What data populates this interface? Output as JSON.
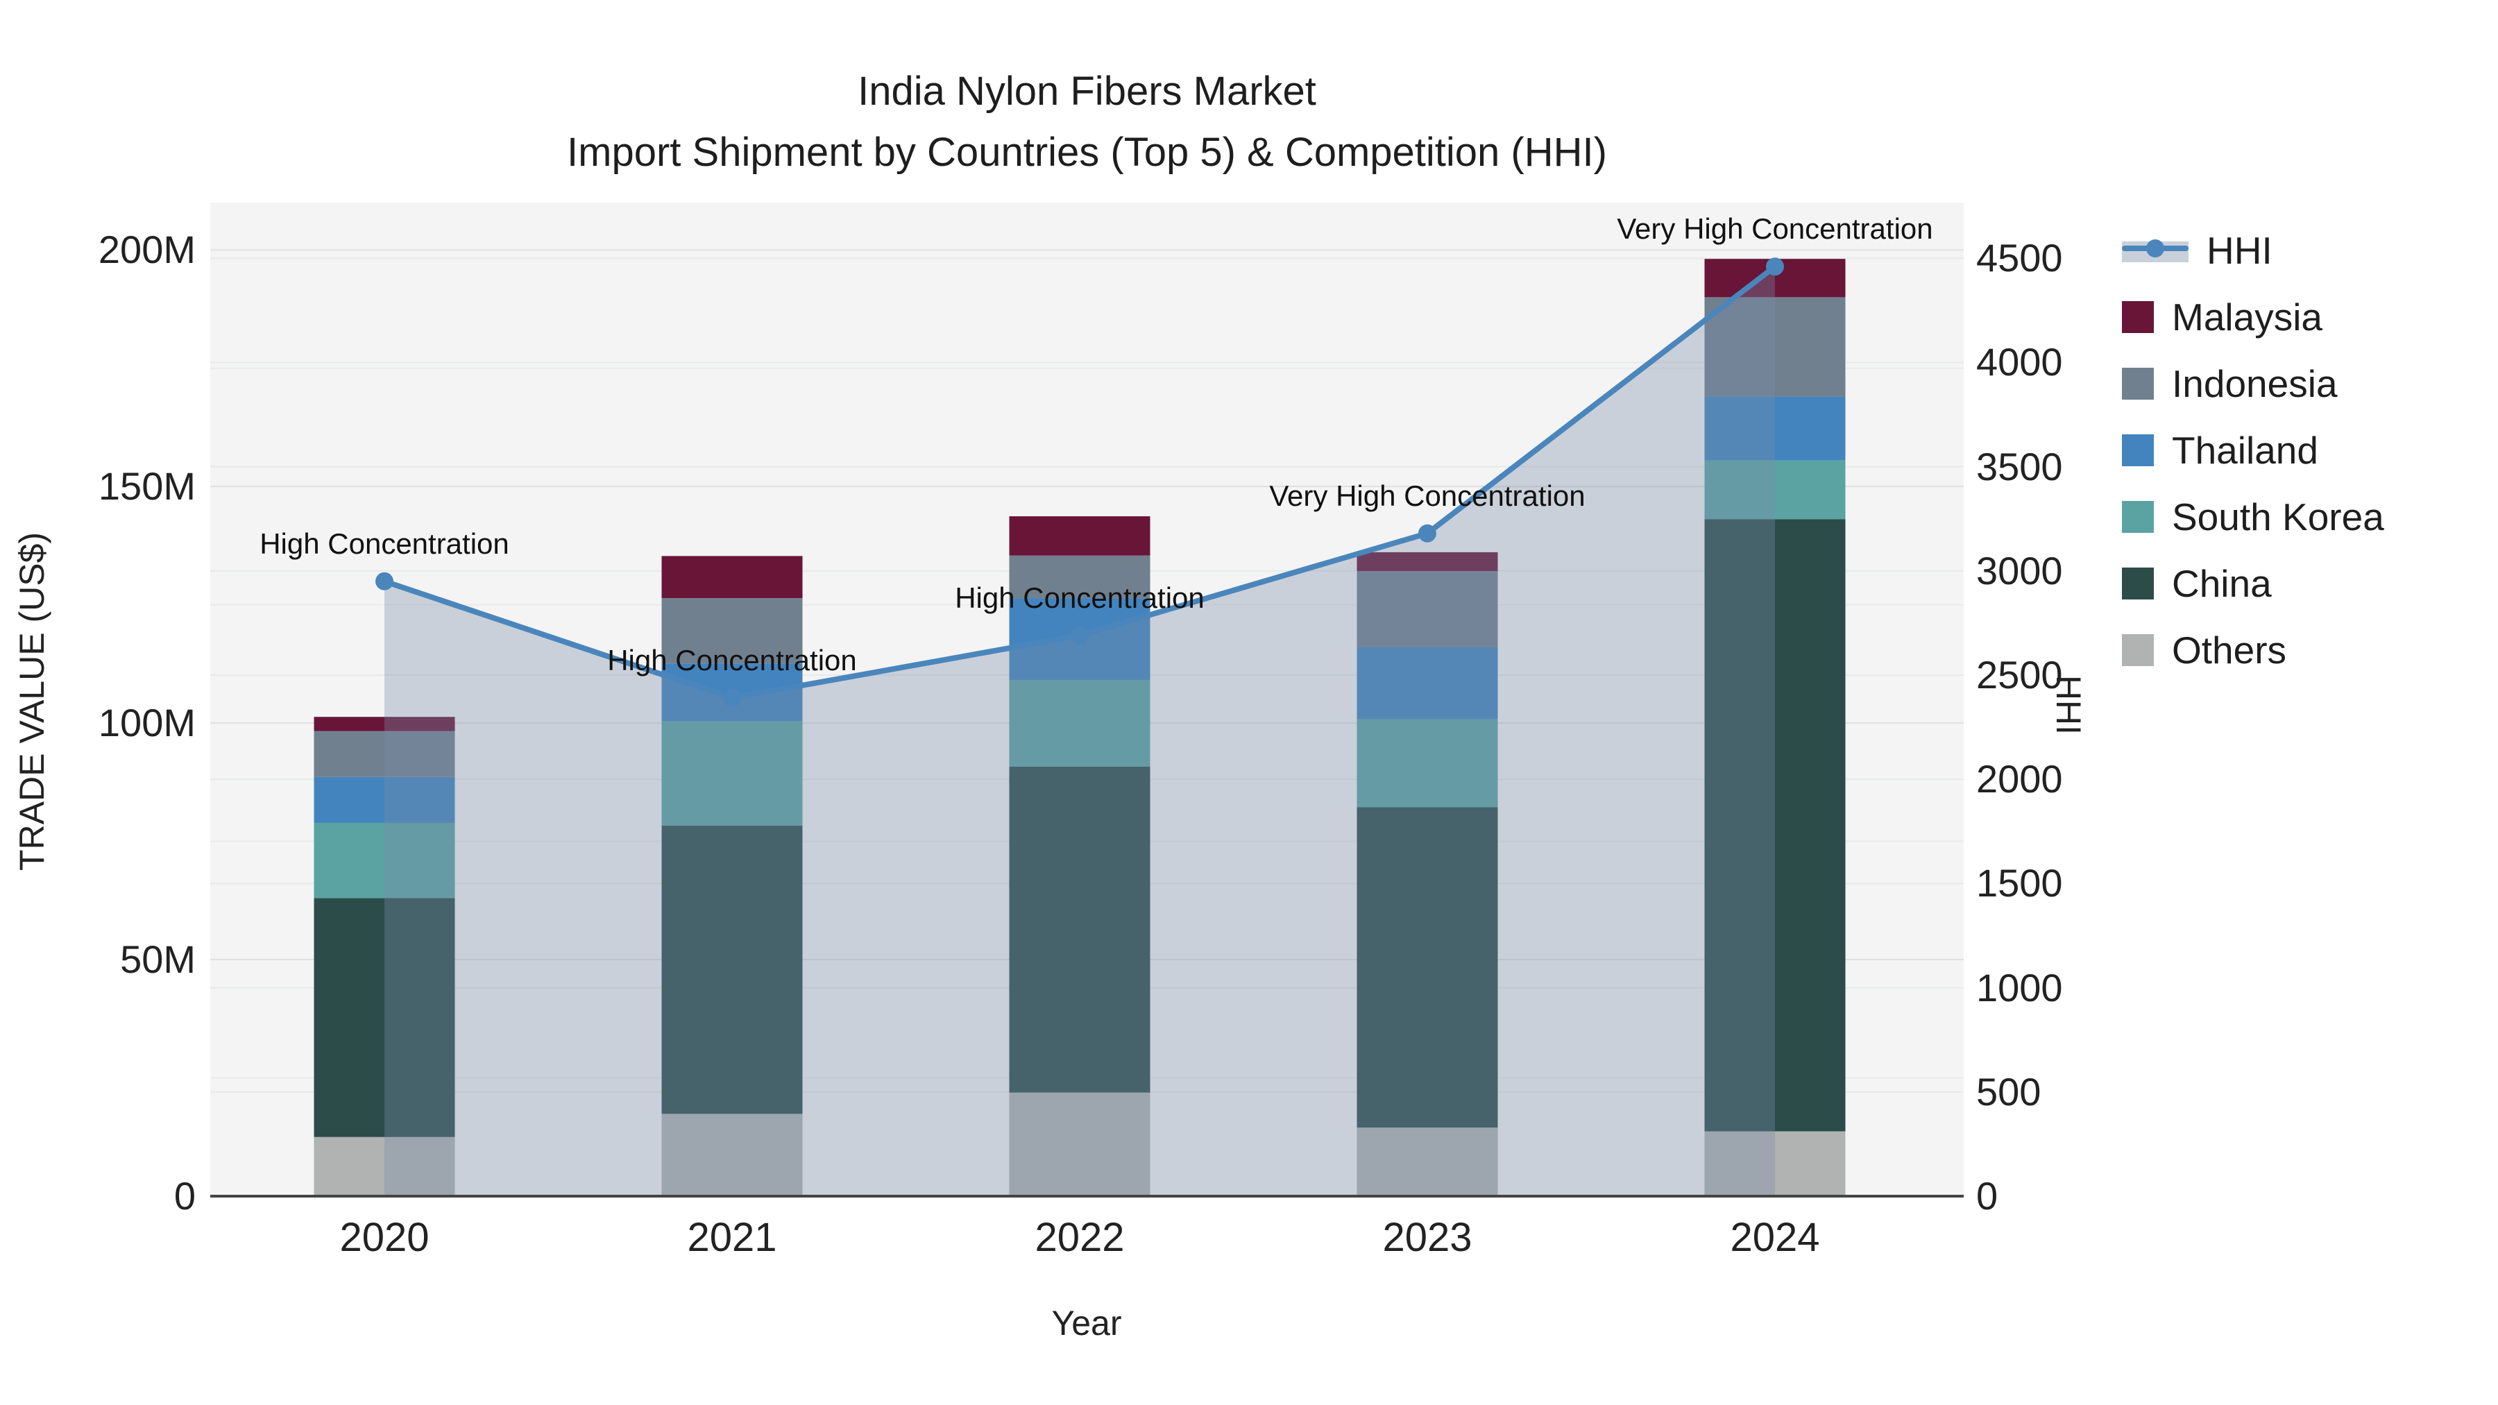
{
  "title": {
    "line1": "India Nylon Fibers Market",
    "line2": "Import Shipment by Countries (Top 5) & Competition (HHI)"
  },
  "axes": {
    "x_title": "Year",
    "y_left_title": "TRADE VALUE (US$)",
    "y_right_title": "HHI",
    "y_left_ticks": [
      {
        "value": 0,
        "label": "0"
      },
      {
        "value": 50,
        "label": "50M"
      },
      {
        "value": 100,
        "label": "100M"
      },
      {
        "value": 150,
        "label": "150M"
      },
      {
        "value": 200,
        "label": "200M"
      }
    ],
    "y_left_range_m": [
      0,
      210
    ],
    "y_right_ticks": [
      {
        "value": 0,
        "label": "0"
      },
      {
        "value": 500,
        "label": "500"
      },
      {
        "value": 1000,
        "label": "1000"
      },
      {
        "value": 1500,
        "label": "1500"
      },
      {
        "value": 2000,
        "label": "2000"
      },
      {
        "value": 2500,
        "label": "2500"
      },
      {
        "value": 3000,
        "label": "3000"
      },
      {
        "value": 3500,
        "label": "3500"
      },
      {
        "value": 4000,
        "label": "4000"
      },
      {
        "value": 4500,
        "label": "4500"
      }
    ],
    "y_right_range": [
      0,
      4767
    ],
    "grid": true
  },
  "colors": {
    "hhi_line": "#4a86bb",
    "hhi_area_fill": "rgba(120,140,170,0.35)",
    "plot_background": "#f4f4f4",
    "grid_minor": "#ebebeb",
    "grid_major": "#e0e0e0",
    "axis_line": "#444444"
  },
  "legend": {
    "position": "right",
    "items_order": [
      "HHI",
      "Malaysia",
      "Indonesia",
      "Thailand",
      "South Korea",
      "China",
      "Others"
    ]
  },
  "chart_data": {
    "type": "bar",
    "subtype": "stacked-bars-with-line-overlay",
    "categories": [
      "2020",
      "2021",
      "2022",
      "2023",
      "2024"
    ],
    "stack_order_bottom_up": [
      "Others",
      "China",
      "South Korea",
      "Thailand",
      "Indonesia",
      "Malaysia"
    ],
    "series": [
      {
        "name": "Malaysia",
        "color": "#691537",
        "values": [
          3.0,
          8.9,
          8.3,
          4.0,
          8.1
        ]
      },
      {
        "name": "Indonesia",
        "color": "#71808f",
        "values": [
          9.7,
          13.8,
          9.0,
          16.1,
          21.0
        ]
      },
      {
        "name": "Thailand",
        "color": "#4384be",
        "values": [
          9.7,
          12.2,
          17.3,
          15.2,
          13.5
        ]
      },
      {
        "name": "South Korea",
        "color": "#5ba3a3",
        "values": [
          15.9,
          22.1,
          18.3,
          18.6,
          12.4
        ]
      },
      {
        "name": "China",
        "color": "#2c4c4a",
        "values": [
          50.5,
          60.9,
          68.9,
          67.7,
          129.4
        ]
      },
      {
        "name": "Others",
        "color": "#b1b3b3",
        "values": [
          12.5,
          17.4,
          21.9,
          14.5,
          13.7
        ]
      }
    ],
    "bar_totals_m": [
      101.3,
      135.3,
      143.7,
      136.1,
      198.1
    ],
    "line_series": {
      "name": "HHI",
      "color": "#4a86bb",
      "values": [
        2950,
        2390,
        2690,
        3180,
        4460
      ]
    },
    "annotations": [
      {
        "category": "2020",
        "text": "High Concentration"
      },
      {
        "category": "2021",
        "text": "High Concentration"
      },
      {
        "category": "2022",
        "text": "High Concentration"
      },
      {
        "category": "2023",
        "text": "Very High Concentration"
      },
      {
        "category": "2024",
        "text": "Very High Concentration"
      }
    ],
    "title": "India Nylon Fibers Market — Import Shipment by Countries (Top 5) & Competition (HHI)",
    "xlabel": "Year",
    "ylabel_left": "TRADE VALUE (US$)",
    "ylabel_right": "HHI"
  }
}
